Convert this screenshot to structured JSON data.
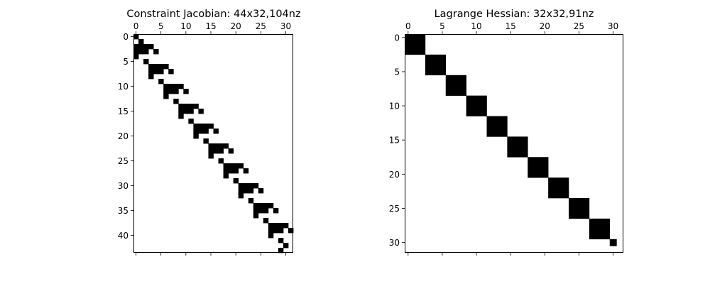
{
  "chart_data": [
    {
      "type": "heatmap",
      "subtype": "sparsity-pattern",
      "title": "Constraint Jacobian: 44x32,104nz",
      "rows": 44,
      "cols": 32,
      "xticks": [
        0,
        5,
        10,
        15,
        20,
        25,
        30
      ],
      "yticks": [
        0,
        5,
        10,
        15,
        20,
        25,
        30,
        35,
        40
      ],
      "x_ticks_position": "top-and-bottom",
      "x_tick_labels_position": "top",
      "grid": false,
      "colors": {
        "nonzero": "#000000",
        "zero": "#ffffff"
      },
      "nonzeros_by_row": [
        [
          0
        ],
        [
          1
        ],
        [
          0,
          1,
          2,
          3
        ],
        [
          0,
          1,
          2,
          4
        ],
        [
          0
        ],
        [
          2
        ],
        [
          3,
          4,
          5,
          6
        ],
        [
          3,
          4,
          5,
          7
        ],
        [
          3
        ],
        [
          5
        ],
        [
          6,
          7,
          8,
          9
        ],
        [
          6,
          7,
          8,
          10
        ],
        [
          6
        ],
        [
          8
        ],
        [
          9,
          10,
          11,
          12
        ],
        [
          9,
          10,
          11,
          13
        ],
        [
          9
        ],
        [
          11
        ],
        [
          12,
          13,
          14,
          15
        ],
        [
          12,
          13,
          14,
          16
        ],
        [
          12
        ],
        [
          14
        ],
        [
          15,
          16,
          17,
          18
        ],
        [
          15,
          16,
          17,
          19
        ],
        [
          15
        ],
        [
          17
        ],
        [
          18,
          19,
          20,
          21
        ],
        [
          18,
          19,
          20,
          22
        ],
        [
          18
        ],
        [
          20
        ],
        [
          21,
          22,
          23,
          24
        ],
        [
          21,
          22,
          23,
          25
        ],
        [
          21
        ],
        [
          23
        ],
        [
          24,
          25,
          26,
          27
        ],
        [
          24,
          25,
          26,
          28
        ],
        [
          24
        ],
        [
          26
        ],
        [
          27,
          28,
          29,
          30
        ],
        [
          27,
          28,
          29,
          31
        ],
        [
          27
        ],
        [
          29
        ],
        [
          30
        ],
        [
          29
        ]
      ]
    },
    {
      "type": "heatmap",
      "subtype": "sparsity-pattern",
      "title": "Lagrange Hessian: 32x32,91nz",
      "rows": 32,
      "cols": 32,
      "xticks": [
        0,
        5,
        10,
        15,
        20,
        25,
        30
      ],
      "yticks": [
        0,
        5,
        10,
        15,
        20,
        25,
        30
      ],
      "x_ticks_position": "top-and-bottom",
      "x_tick_labels_position": "top",
      "grid": false,
      "colors": {
        "nonzero": "#000000",
        "zero": "#ffffff"
      },
      "blocks": [
        {
          "start": 0,
          "size": 3
        },
        {
          "start": 3,
          "size": 3
        },
        {
          "start": 6,
          "size": 3
        },
        {
          "start": 9,
          "size": 3
        },
        {
          "start": 12,
          "size": 3
        },
        {
          "start": 15,
          "size": 3
        },
        {
          "start": 18,
          "size": 3
        },
        {
          "start": 21,
          "size": 3
        },
        {
          "start": 24,
          "size": 3
        },
        {
          "start": 27,
          "size": 3
        },
        {
          "start": 30,
          "size": 1
        }
      ]
    }
  ]
}
